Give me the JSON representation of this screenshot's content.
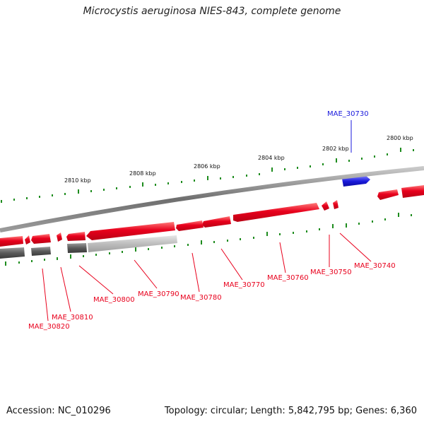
{
  "title": "Microcystis aeruginosa NIES-843, complete genome",
  "accession": "Accession: NC_010296",
  "topology": "Topology: circular; Length: 5,842,795 bp; Genes: 6,360",
  "colors": {
    "forward_gene": "#e8001c",
    "reverse_gene": "#1a1adc",
    "backbone": "#808080",
    "ticks": "#1e8c1e"
  },
  "kbp_labels": [
    "2800 kbp",
    "2802 kbp",
    "2804 kbp",
    "2806 kbp",
    "2808 kbp",
    "2810 kbp"
  ],
  "gene_labels": [
    "MAE_30730",
    "MAE_30740",
    "MAE_30750",
    "MAE_30760",
    "MAE_30770",
    "MAE_30780",
    "MAE_30790",
    "MAE_30800",
    "MAE_30810",
    "MAE_30820"
  ]
}
